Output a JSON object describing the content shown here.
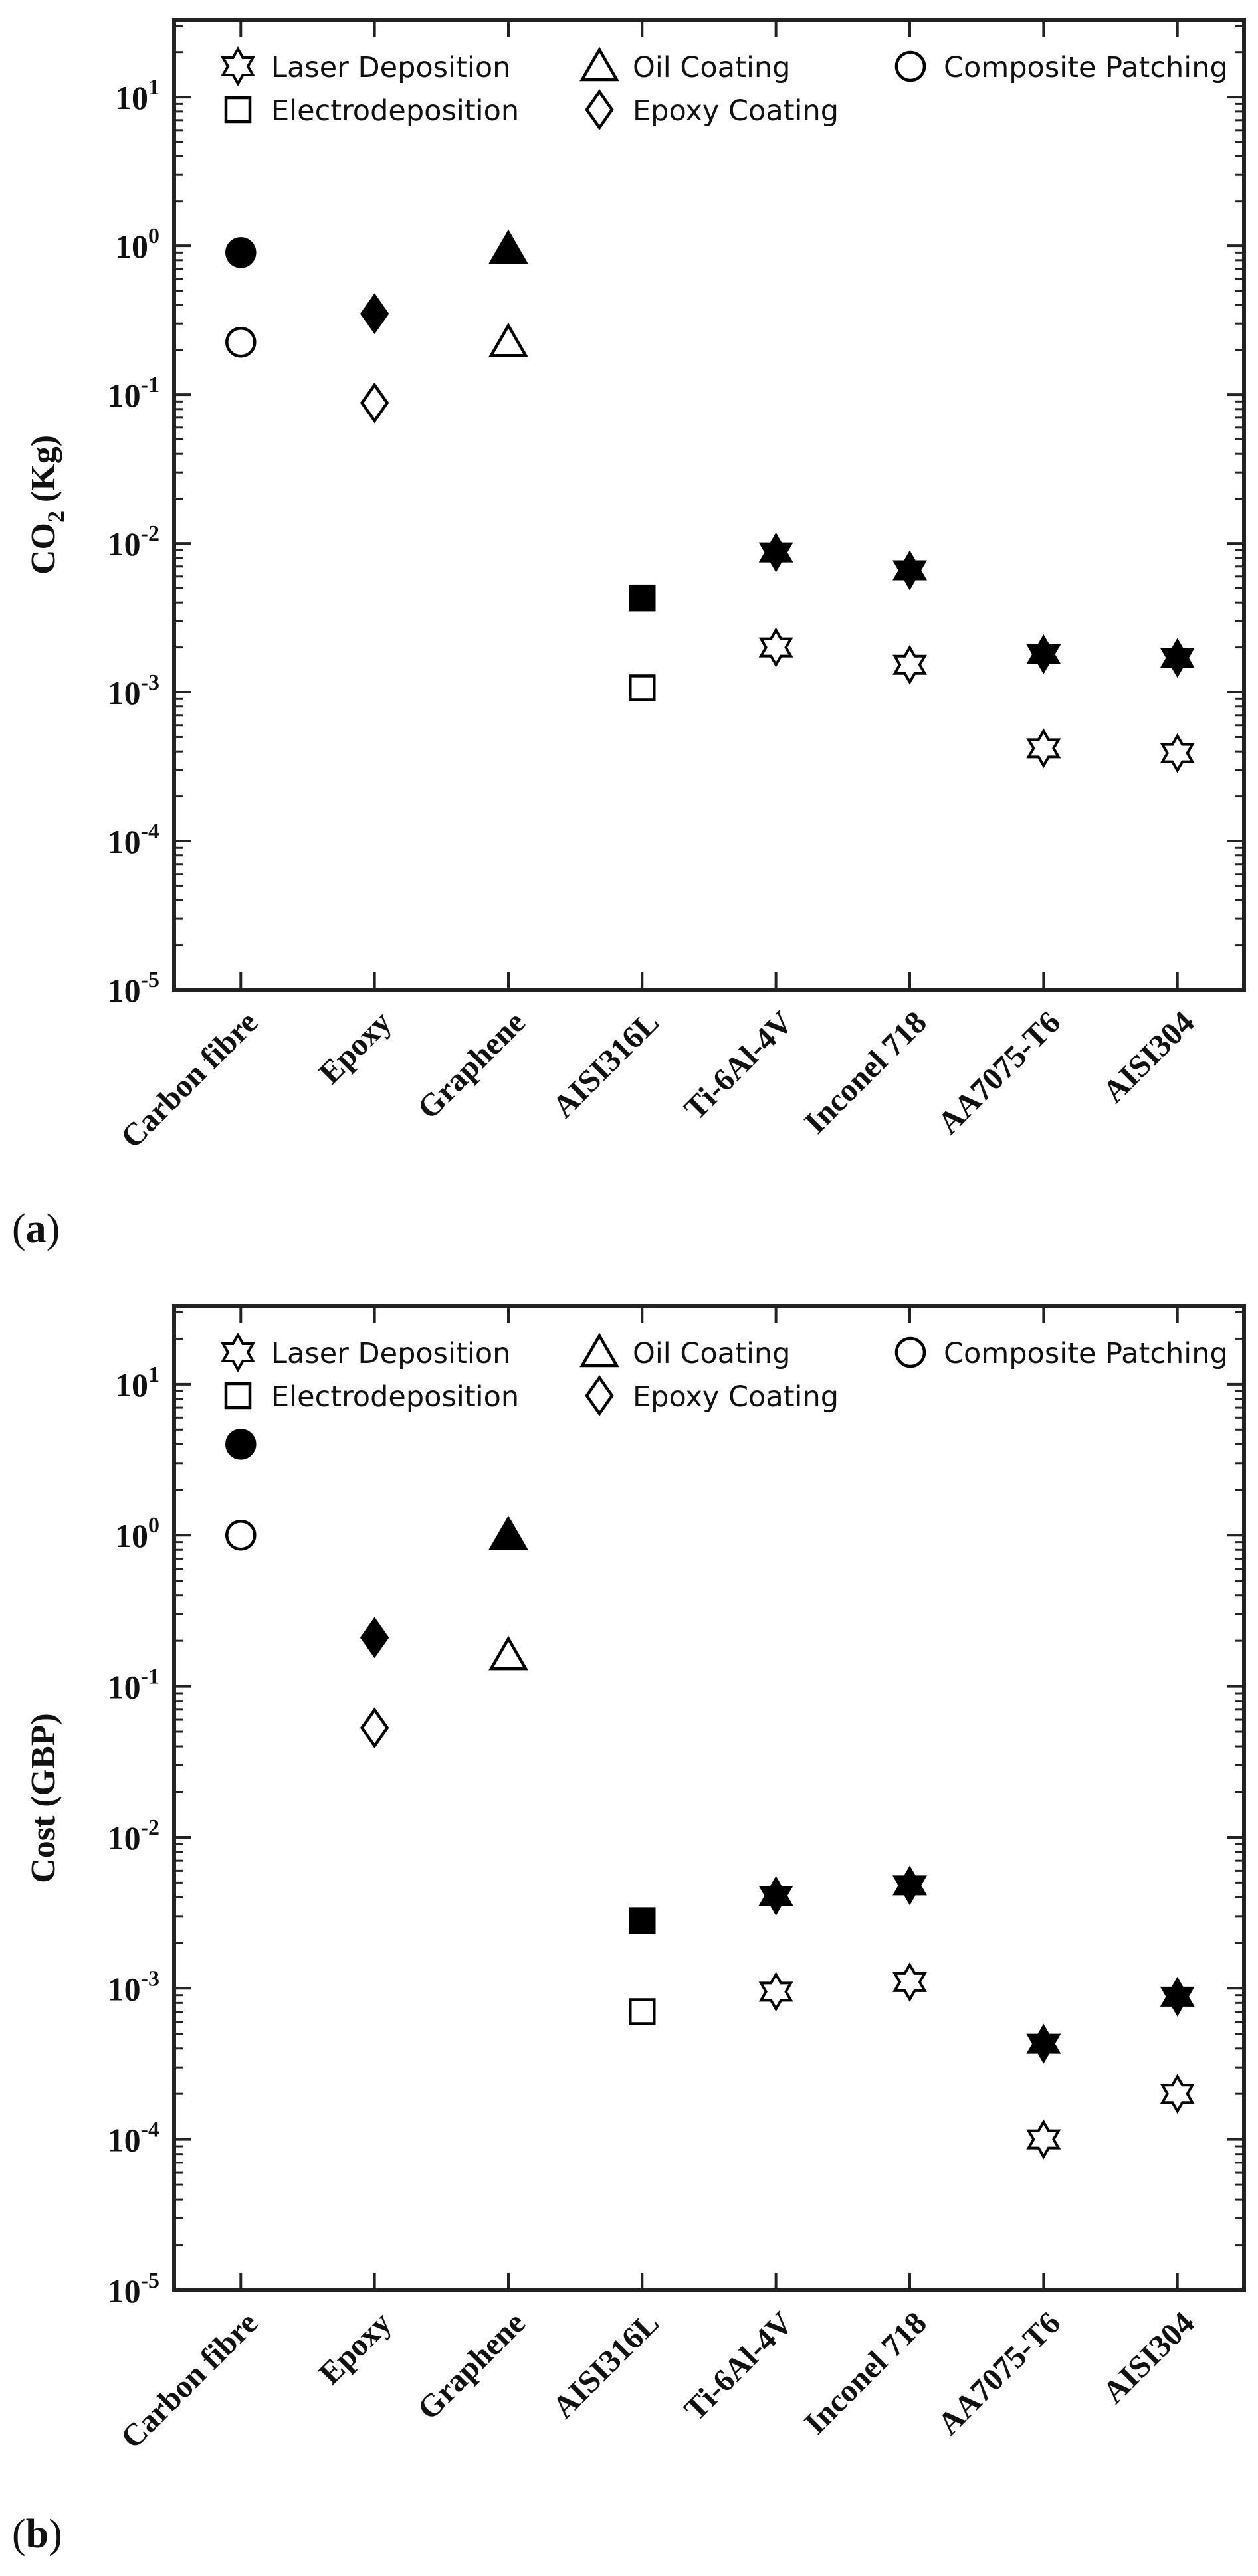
{
  "colors": {
    "axis": "#222222",
    "ink": "#000000",
    "background": "#ffffff"
  },
  "legend_entries": [
    {
      "label": "Laser Deposition",
      "marker": "hexagram-icon"
    },
    {
      "label": "Oil Coating",
      "marker": "triangle-icon"
    },
    {
      "label": "Composite Patching",
      "marker": "circle-icon"
    },
    {
      "label": "Electrodeposition",
      "marker": "square-icon"
    },
    {
      "label": "Epoxy Coating",
      "marker": "diamond-icon"
    }
  ],
  "chart_data": [
    {
      "type": "scatter",
      "panel_label": "a",
      "yscale": "log",
      "ylabel_main": "CO",
      "ylabel_sub": "2",
      "ylabel_tail": " (Kg)",
      "ylim": [
        1e-05,
        33
      ],
      "yticks": [
        {
          "value": 1e-05,
          "exp": "-5"
        },
        {
          "value": 0.0001,
          "exp": "-4"
        },
        {
          "value": 0.001,
          "exp": "-3"
        },
        {
          "value": 0.01,
          "exp": "-2"
        },
        {
          "value": 0.1,
          "exp": "-1"
        },
        {
          "value": 1,
          "exp": "0"
        },
        {
          "value": 10,
          "exp": "1"
        }
      ],
      "categories": [
        "Carbon fibre",
        "Epoxy",
        "Graphene",
        "AISI316L",
        "Ti-6Al-4V",
        "Inconel 718",
        "AA7075-T6",
        "AISI304"
      ],
      "series": [
        {
          "name": "Composite Patching",
          "marker": "circle",
          "filled": true,
          "category": 0,
          "value": 0.9
        },
        {
          "name": "Composite Patching",
          "marker": "circle",
          "filled": false,
          "category": 0,
          "value": 0.225
        },
        {
          "name": "Epoxy Coating",
          "marker": "diamond",
          "filled": true,
          "category": 1,
          "value": 0.35
        },
        {
          "name": "Epoxy Coating",
          "marker": "diamond",
          "filled": false,
          "category": 1,
          "value": 0.088
        },
        {
          "name": "Oil Coating",
          "marker": "triangle",
          "filled": true,
          "category": 2,
          "value": 0.95
        },
        {
          "name": "Oil Coating",
          "marker": "triangle",
          "filled": false,
          "category": 2,
          "value": 0.225
        },
        {
          "name": "Electrodeposition",
          "marker": "square",
          "filled": true,
          "category": 3,
          "value": 0.0043
        },
        {
          "name": "Electrodeposition",
          "marker": "square",
          "filled": false,
          "category": 3,
          "value": 0.00107
        },
        {
          "name": "Laser Deposition",
          "marker": "hexagram",
          "filled": true,
          "category": 4,
          "value": 0.0087
        },
        {
          "name": "Laser Deposition",
          "marker": "hexagram",
          "filled": false,
          "category": 4,
          "value": 0.002
        },
        {
          "name": "Laser Deposition",
          "marker": "hexagram",
          "filled": true,
          "category": 5,
          "value": 0.0066
        },
        {
          "name": "Laser Deposition",
          "marker": "hexagram",
          "filled": false,
          "category": 5,
          "value": 0.00153
        },
        {
          "name": "Laser Deposition",
          "marker": "hexagram",
          "filled": true,
          "category": 6,
          "value": 0.0018
        },
        {
          "name": "Laser Deposition",
          "marker": "hexagram",
          "filled": false,
          "category": 6,
          "value": 0.00042
        },
        {
          "name": "Laser Deposition",
          "marker": "hexagram",
          "filled": true,
          "category": 7,
          "value": 0.0017
        },
        {
          "name": "Laser Deposition",
          "marker": "hexagram",
          "filled": false,
          "category": 7,
          "value": 0.00039
        }
      ]
    },
    {
      "type": "scatter",
      "panel_label": "b",
      "yscale": "log",
      "ylabel_main": "Cost (GBP)",
      "ylabel_sub": "",
      "ylabel_tail": "",
      "ylim": [
        1e-05,
        33
      ],
      "yticks": [
        {
          "value": 1e-05,
          "exp": "-5"
        },
        {
          "value": 0.0001,
          "exp": "-4"
        },
        {
          "value": 0.001,
          "exp": "-3"
        },
        {
          "value": 0.01,
          "exp": "-2"
        },
        {
          "value": 0.1,
          "exp": "-1"
        },
        {
          "value": 1,
          "exp": "0"
        },
        {
          "value": 10,
          "exp": "1"
        }
      ],
      "categories": [
        "Carbon fibre",
        "Epoxy",
        "Graphene",
        "AISI316L",
        "Ti-6Al-4V",
        "Inconel 718",
        "AA7075-T6",
        "AISI304"
      ],
      "series": [
        {
          "name": "Composite Patching",
          "marker": "circle",
          "filled": true,
          "category": 0,
          "value": 4.0
        },
        {
          "name": "Composite Patching",
          "marker": "circle",
          "filled": false,
          "category": 0,
          "value": 1.0
        },
        {
          "name": "Epoxy Coating",
          "marker": "diamond",
          "filled": true,
          "category": 1,
          "value": 0.21
        },
        {
          "name": "Epoxy Coating",
          "marker": "diamond",
          "filled": false,
          "category": 1,
          "value": 0.053
        },
        {
          "name": "Oil Coating",
          "marker": "triangle",
          "filled": true,
          "category": 2,
          "value": 1.0
        },
        {
          "name": "Oil Coating",
          "marker": "triangle",
          "filled": false,
          "category": 2,
          "value": 0.16
        },
        {
          "name": "Electrodeposition",
          "marker": "square",
          "filled": true,
          "category": 3,
          "value": 0.0028
        },
        {
          "name": "Electrodeposition",
          "marker": "square",
          "filled": false,
          "category": 3,
          "value": 0.0007
        },
        {
          "name": "Laser Deposition",
          "marker": "hexagram",
          "filled": true,
          "category": 4,
          "value": 0.0041
        },
        {
          "name": "Laser Deposition",
          "marker": "hexagram",
          "filled": false,
          "category": 4,
          "value": 0.00095
        },
        {
          "name": "Laser Deposition",
          "marker": "hexagram",
          "filled": true,
          "category": 5,
          "value": 0.0048
        },
        {
          "name": "Laser Deposition",
          "marker": "hexagram",
          "filled": false,
          "category": 5,
          "value": 0.0011
        },
        {
          "name": "Laser Deposition",
          "marker": "hexagram",
          "filled": true,
          "category": 6,
          "value": 0.00043
        },
        {
          "name": "Laser Deposition",
          "marker": "hexagram",
          "filled": false,
          "category": 6,
          "value": 0.0001
        },
        {
          "name": "Laser Deposition",
          "marker": "hexagram",
          "filled": true,
          "category": 7,
          "value": 0.00088
        },
        {
          "name": "Laser Deposition",
          "marker": "hexagram",
          "filled": false,
          "category": 7,
          "value": 0.0002
        }
      ]
    }
  ]
}
